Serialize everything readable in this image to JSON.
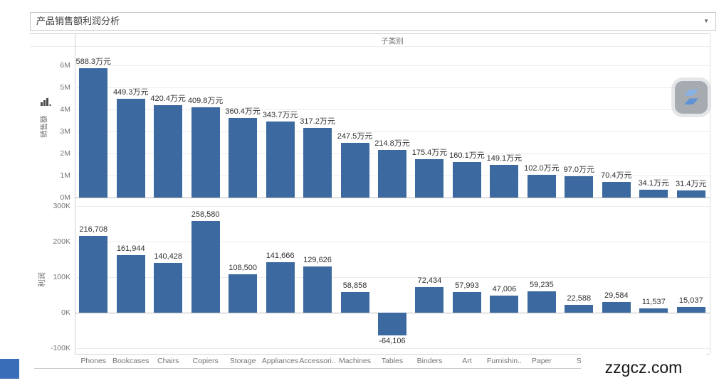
{
  "title_bar": {
    "label": "产品销售额利润分析",
    "caret_icon": "▼"
  },
  "column_header": "子类别",
  "watermark": {
    "text": "zzgcz.com"
  },
  "colors": {
    "bar": "#3c6aa0",
    "corner_square": "#3a6db8",
    "background": "#ffffff"
  },
  "categories": [
    "Phones",
    "Bookcases",
    "Chairs",
    "Copiers",
    "Storage",
    "Appliances",
    "Accessori..",
    "Machines",
    "Tables",
    "Binders",
    "Art",
    "Furnishin..",
    "Paper",
    "S",
    "",
    "",
    ""
  ],
  "chart_data": [
    {
      "type": "bar",
      "pane": "sales",
      "ylabel": "销售额",
      "unit": "万元",
      "values": [
        588.3,
        449.3,
        420.4,
        409.8,
        360.4,
        343.7,
        317.2,
        247.5,
        214.8,
        175.4,
        160.1,
        149.1,
        102.0,
        97.0,
        70.4,
        34.1,
        31.4
      ],
      "value_labels": [
        "588.3万元",
        "449.3万元",
        "420.4万元",
        "409.8万元",
        "360.4万元",
        "343.7万元",
        "317.2万元",
        "247.5万元",
        "214.8万元",
        "175.4万元",
        "160.1万元",
        "149.1万元",
        "102.0万元",
        "97.0万元",
        "70.4万元",
        "34.1万元",
        "31.4万元"
      ],
      "yticks": {
        "labels": [
          "6M",
          "5M",
          "4M",
          "3M",
          "2M",
          "1M",
          "0M"
        ],
        "values": [
          600,
          500,
          400,
          300,
          200,
          100,
          0
        ]
      },
      "ylim": [
        0,
        650
      ],
      "grid": true,
      "legend": "none"
    },
    {
      "type": "bar",
      "pane": "profit",
      "ylabel": "利润",
      "unit": "yuan",
      "values": [
        216708,
        161944,
        140428,
        258580,
        108500,
        141666,
        129626,
        58858,
        -64106,
        72434,
        57993,
        47006,
        59235,
        22588,
        29584,
        11537,
        15037
      ],
      "value_labels": [
        "216,708",
        "161,944",
        "140,428",
        "258,580",
        "108,500",
        "141,666",
        "129,626",
        "58,858",
        "-64,106",
        "72,434",
        "57,993",
        "47,006",
        "59,235",
        "22,588",
        "29,584",
        "11,537",
        "15,037"
      ],
      "yticks": {
        "labels": [
          "300K",
          "200K",
          "100K",
          "0K",
          "-100K"
        ],
        "values": [
          300000,
          200000,
          100000,
          0,
          -100000
        ]
      },
      "ylim": [
        -130000,
        310000
      ],
      "grid": true,
      "legend": "none"
    }
  ]
}
